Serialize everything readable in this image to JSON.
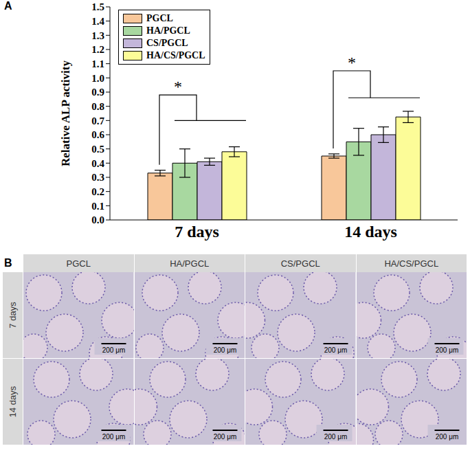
{
  "chart_data": {
    "type": "bar",
    "panel": "A",
    "y_label": "Relative ALP activity",
    "categories": [
      "7 days",
      "14 days"
    ],
    "series": [
      {
        "name": "PGCL",
        "color": "#f8c79a",
        "values": [
          0.33,
          0.45
        ],
        "errors": [
          0.02,
          0.015
        ]
      },
      {
        "name": "HA/PGCL",
        "color": "#a8d8a0",
        "values": [
          0.4,
          0.55
        ],
        "errors": [
          0.1,
          0.095
        ]
      },
      {
        "name": "CS/PGCL",
        "color": "#c3b6da",
        "values": [
          0.41,
          0.6
        ],
        "errors": [
          0.025,
          0.055
        ]
      },
      {
        "name": "HA/CS/PGCL",
        "color": "#fcfc98",
        "values": [
          0.48,
          0.725
        ],
        "errors": [
          0.035,
          0.04
        ]
      }
    ],
    "ylim": [
      0,
      1.5
    ],
    "yticks": [
      {
        "value": 0,
        "label": "0.0"
      },
      {
        "value": 0.1,
        "label": "0.1"
      },
      {
        "value": 0.2,
        "label": "0.2"
      },
      {
        "value": 0.3,
        "label": "0.3"
      },
      {
        "value": 0.4,
        "label": "0.4"
      },
      {
        "value": 0.5,
        "label": "0.5"
      },
      {
        "value": 0.6,
        "label": "0.6"
      },
      {
        "value": 0.7,
        "label": "0.7"
      },
      {
        "value": 0.8,
        "label": "0.8"
      },
      {
        "value": 0.9,
        "label": "0.9"
      },
      {
        "value": 1,
        "label": "1.0"
      },
      {
        "value": 1.1,
        "label": "1.1"
      },
      {
        "value": 1.2,
        "label": "1.2"
      },
      {
        "value": 1.3,
        "label": "1.3"
      },
      {
        "value": 1.4,
        "label": "1.4"
      },
      {
        "value": 1.5,
        "label": "1.5"
      }
    ],
    "grid": false,
    "legend": "top-left",
    "annotations": [
      {
        "text": "*",
        "group": "7 days",
        "y": 0.88,
        "y_low": 0.7
      },
      {
        "text": "*",
        "group": "14 days",
        "y": 1.05,
        "y_low": 0.86
      }
    ]
  },
  "image_panel": {
    "panel": "B",
    "columns": [
      "PGCL",
      "HA/PGCL",
      "CS/PGCL",
      "HA/CS/PGCL"
    ],
    "rows": [
      "7 days",
      "14 days"
    ],
    "scale_bar": "200 μm"
  }
}
